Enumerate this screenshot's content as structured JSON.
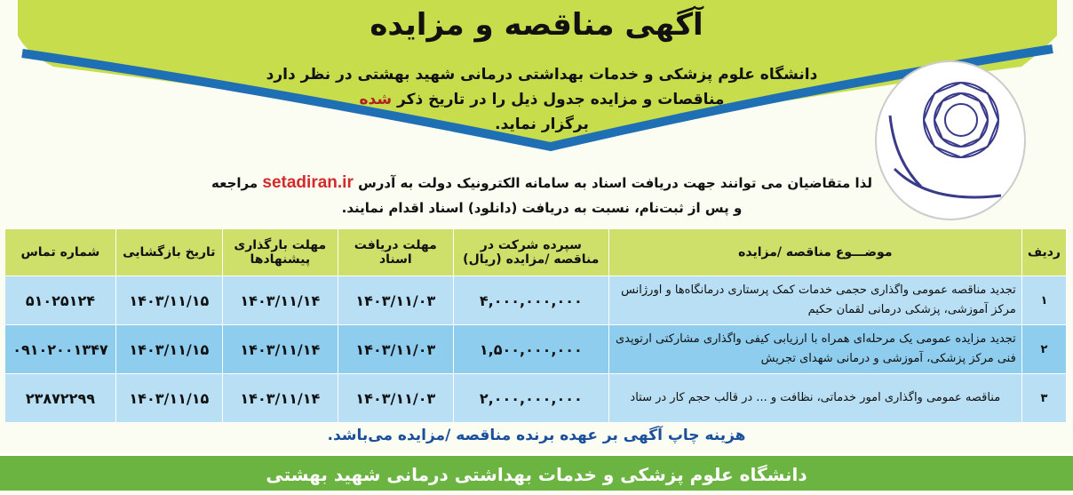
{
  "colors": {
    "header_green": "#c7dd4c",
    "blue_band": "#1f6fb5",
    "table_header": "#cfe06a",
    "row_light": "#b8dff3",
    "row_dark": "#8fcdee",
    "footer_green": "#6cb441",
    "link_red": "#d42a2a"
  },
  "title": "آگهی مناقصه و مزایده",
  "subtitle": {
    "line1": "دانشگاه علوم پزشکی و خدمات بهداشتی درمانی شهید بهشتی در نظر دارد",
    "line2a": "مناقصات و مزایده جدول ذیل را در تاریخ ذکر",
    "line2b": "شده",
    "line3": "برگزار نماید."
  },
  "intro": {
    "before": "لذا متقاضیان می توانند جهت دریافت اسناد به سامانه الکترونیک دولت به آدرس",
    "link": "setadiran.ir",
    "after": "مراجعه",
    "line2": "و پس از ثبت‌نام، نسبت به دریافت (دانلود) اسناد اقدام نمایند."
  },
  "logo": {
    "text": "دانشگاه علوم پزشکی و خدمات بهداشتی درمانی شهید بهشتی",
    "icon": "flower-emblem"
  },
  "table": {
    "headers": [
      "ردیف",
      "موضـــوع مناقصه /مزایده",
      "سپرده شرکت در مناقصه /مزایده (ریال)",
      "مهلت دریافت اسناد",
      "مهلت بارگذاری پیشنهادها",
      "تاریخ بازگشایی",
      "شماره تماس"
    ],
    "rows": [
      {
        "no": "۱",
        "subject": "تجدید مناقصه عمومی واگذاری حجمی خدمات کمک پرستاری درمانگاه‌ها و اورژانس مرکز آموزشی، پزشکی درمانی لقمان حکیم",
        "deposit": "۴,۰۰۰,۰۰۰,۰۰۰",
        "doc_deadline": "۱۴۰۳/۱۱/۰۳",
        "bid_deadline": "۱۴۰۳/۱۱/۱۴",
        "opening": "۱۴۰۳/۱۱/۱۵",
        "phone": "۵۱۰۲۵۱۲۴"
      },
      {
        "no": "۲",
        "subject": "تجدید مزایده عمومی یک مرحله‌ای همراه با ارزیابی کیفی واگذاری مشارکتی ارتوپدی فنی مرکز پزشکی، آموزشی و درمانی شهدای تجریش",
        "deposit": "۱,۵۰۰,۰۰۰,۰۰۰",
        "doc_deadline": "۱۴۰۳/۱۱/۰۳",
        "bid_deadline": "۱۴۰۳/۱۱/۱۴",
        "opening": "۱۴۰۳/۱۱/۱۵",
        "phone": "۰۹۱۰۲۰۰۱۳۴۷"
      },
      {
        "no": "۳",
        "subject": "مناقصه عمومی واگذاری امور خدماتی، نظافت و ... در قالب حجم کار در ستاد",
        "deposit": "۲,۰۰۰,۰۰۰,۰۰۰",
        "doc_deadline": "۱۴۰۳/۱۱/۰۳",
        "bid_deadline": "۱۴۰۳/۱۱/۱۴",
        "opening": "۱۴۰۳/۱۱/۱۵",
        "phone": "۲۳۸۷۲۲۹۹"
      }
    ]
  },
  "note": "هزینه چاپ آگهی بر عهده برنده مناقصه /مزایده می‌باشد.",
  "footer": "دانشگاه علوم پزشکی و خدمات بهداشتی درمانی شهید بهشتی"
}
